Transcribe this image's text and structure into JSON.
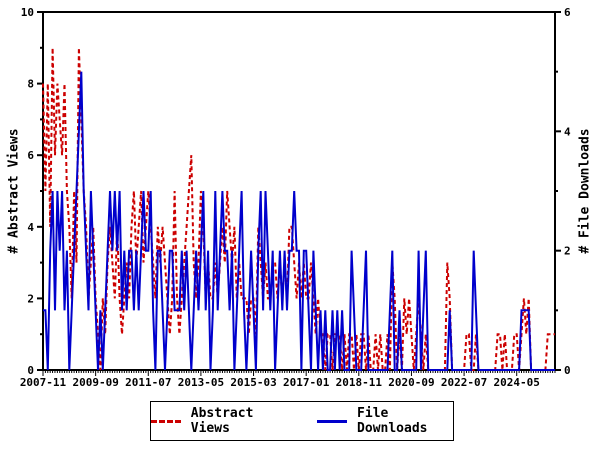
{
  "chart_data": {
    "type": "line",
    "title": "",
    "x_axis": {
      "unit": "month",
      "start_month": "2007-11",
      "end_month": "2025-09",
      "tick_labels": [
        "2007-11",
        "2009-09",
        "2011-07",
        "2013-05",
        "2015-03",
        "2017-01",
        "2018-11",
        "2020-09",
        "2022-07",
        "2024-05"
      ],
      "tick_month_indices": [
        0,
        22,
        44,
        66,
        88,
        110,
        132,
        154,
        176,
        198
      ]
    },
    "left_axis": {
      "label": "# Abstract Views",
      "min": 0,
      "max": 10,
      "major_ticks": [
        0,
        2,
        4,
        6,
        8,
        10
      ],
      "minor_ticks": [
        1,
        3,
        5,
        7,
        9
      ]
    },
    "right_axis": {
      "label": "# File Downloads",
      "min": 0,
      "max": 6,
      "major_ticks": [
        0,
        2,
        4,
        6
      ],
      "minor_ticks": [
        1,
        3,
        5
      ]
    },
    "grid": false,
    "legend_position": "bottom-center",
    "series": [
      {
        "name": "Abstract Views",
        "axis": "left",
        "color": "#cc0000",
        "style": "dashed",
        "values": [
          8,
          5,
          8,
          4,
          9,
          6,
          8,
          7,
          6,
          8,
          5,
          4,
          2,
          5,
          3,
          9,
          7,
          5,
          4,
          2,
          3,
          4,
          2,
          1,
          0,
          2,
          1,
          3,
          4,
          3,
          2,
          4,
          2,
          1,
          2,
          3,
          2,
          4,
          5,
          3,
          4,
          5,
          3,
          4,
          5,
          4,
          3,
          2,
          4,
          3,
          4,
          3,
          2,
          1,
          2,
          5,
          2,
          1,
          2,
          3,
          4,
          5,
          6,
          3,
          2,
          3,
          5,
          4,
          2,
          3,
          2,
          2,
          3,
          2,
          3,
          4,
          3,
          5,
          4,
          3,
          4,
          2,
          3,
          2,
          2,
          2,
          1,
          2,
          2,
          1,
          4,
          3,
          2,
          3,
          2,
          2,
          3,
          3,
          2,
          3,
          2,
          3,
          2,
          4,
          4,
          3,
          2,
          3,
          2,
          3,
          2,
          2,
          3,
          2,
          1,
          2,
          1,
          1,
          0,
          1,
          1,
          0,
          1,
          1,
          1,
          0,
          1,
          0,
          1,
          1,
          0,
          1,
          0,
          1,
          1,
          0,
          1,
          0,
          0,
          1,
          0,
          1,
          0,
          0,
          1,
          0,
          3,
          2,
          0,
          1,
          0,
          2,
          1,
          2,
          1,
          0,
          1,
          2,
          1,
          0,
          1,
          0,
          0,
          0,
          0,
          0,
          0,
          0,
          0,
          3,
          2,
          0,
          0,
          0,
          0,
          0,
          0,
          1,
          1,
          0,
          0,
          1,
          0,
          0,
          0,
          0,
          0,
          0,
          0,
          0,
          1,
          1,
          0,
          1,
          0,
          0,
          0,
          1,
          1,
          0,
          1,
          2,
          1,
          2,
          0,
          0,
          0,
          0,
          0,
          0,
          0,
          1,
          1,
          1,
          1
        ]
      },
      {
        "name": "File Downloads",
        "axis": "right",
        "color": "#0000cc",
        "style": "solid",
        "values": [
          1,
          1,
          0,
          2,
          3,
          1,
          3,
          2,
          3,
          1,
          2,
          0,
          1,
          2,
          3,
          4,
          5,
          3,
          2,
          1,
          3,
          2,
          1,
          0,
          1,
          0,
          1,
          2,
          3,
          2,
          3,
          2,
          3,
          1,
          2,
          1,
          2,
          2,
          1,
          2,
          1,
          2,
          3,
          2,
          2,
          3,
          1,
          0,
          2,
          2,
          1,
          0,
          1,
          2,
          2,
          1,
          1,
          1,
          2,
          1,
          2,
          1,
          0,
          1,
          2,
          1,
          2,
          3,
          1,
          2,
          0,
          1,
          3,
          1,
          2,
          3,
          2,
          2,
          1,
          2,
          0,
          1,
          2,
          3,
          1,
          0,
          1,
          2,
          1,
          0,
          2,
          3,
          1,
          3,
          2,
          1,
          2,
          0,
          1,
          2,
          1,
          2,
          1,
          2,
          2,
          3,
          2,
          2,
          0,
          2,
          2,
          1,
          0,
          2,
          1,
          0,
          1,
          0,
          1,
          0,
          0,
          1,
          0,
          1,
          0,
          1,
          0,
          0,
          0,
          2,
          1,
          0,
          0,
          0,
          1,
          2,
          0,
          0,
          0,
          0,
          0,
          0,
          0,
          0,
          0,
          1,
          2,
          0,
          0,
          1,
          0,
          0,
          0,
          0,
          0,
          0,
          0,
          2,
          0,
          1,
          2,
          0,
          0,
          0,
          0,
          0,
          0,
          0,
          0,
          0,
          1,
          0,
          0,
          0,
          0,
          0,
          0,
          0,
          0,
          0,
          2,
          1,
          0,
          0,
          0,
          0,
          0,
          0,
          0,
          0,
          0,
          0,
          0,
          0,
          0,
          0,
          0,
          0,
          0,
          0,
          1,
          1,
          1,
          1,
          0,
          0,
          0,
          0,
          0,
          0,
          0,
          0,
          0,
          0,
          0
        ]
      }
    ]
  }
}
